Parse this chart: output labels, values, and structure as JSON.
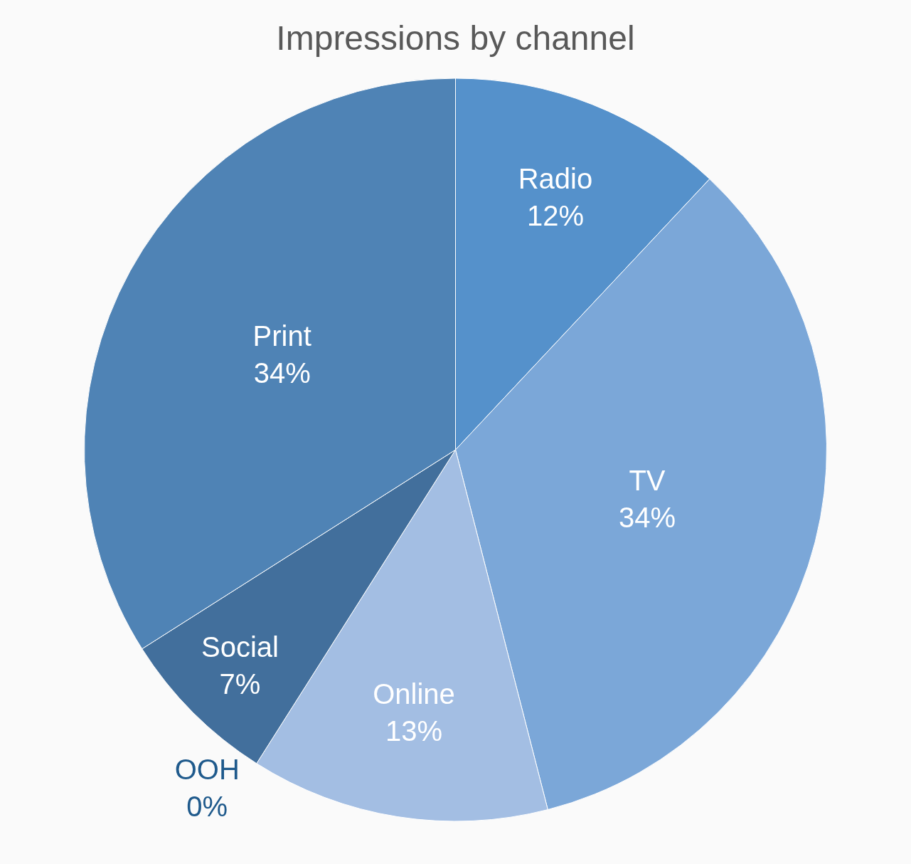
{
  "chart_data": {
    "type": "pie",
    "title": "Impressions by channel",
    "categories": [
      "Radio",
      "TV",
      "Online",
      "OOH",
      "Social",
      "Print"
    ],
    "values": [
      12,
      34,
      13,
      0,
      7,
      34
    ],
    "value_labels": [
      "12%",
      "34%",
      "13%",
      "0%",
      "7%",
      "34%"
    ],
    "colors": [
      "#5591cb",
      "#7ba7d8",
      "#a3bee3",
      "#3a6a96",
      "#426f9c",
      "#4f83b5"
    ],
    "legend": false
  }
}
